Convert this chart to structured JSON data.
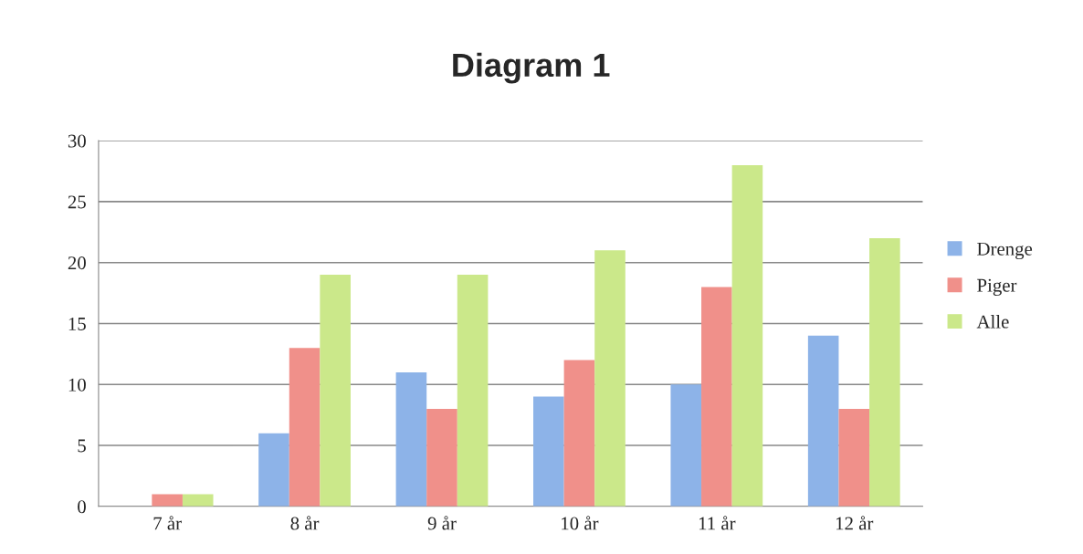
{
  "chart_data": {
    "type": "bar",
    "title": "Diagram 1",
    "categories": [
      "7 år",
      "8 år",
      "9 år",
      "10 år",
      "11 år",
      "12 år"
    ],
    "series": [
      {
        "name": "Drenge",
        "color": "#8db3e8",
        "values": [
          0,
          6,
          11,
          9,
          10,
          14
        ]
      },
      {
        "name": "Piger",
        "color": "#f0908a",
        "values": [
          1,
          13,
          8,
          12,
          18,
          8
        ]
      },
      {
        "name": "Alle",
        "color": "#cbe88a",
        "values": [
          1,
          19,
          19,
          21,
          28,
          22
        ]
      }
    ],
    "ylim": [
      0,
      30
    ],
    "yticks": [
      0,
      5,
      10,
      15,
      20,
      25,
      30
    ],
    "grid": "y",
    "legend": "right"
  }
}
